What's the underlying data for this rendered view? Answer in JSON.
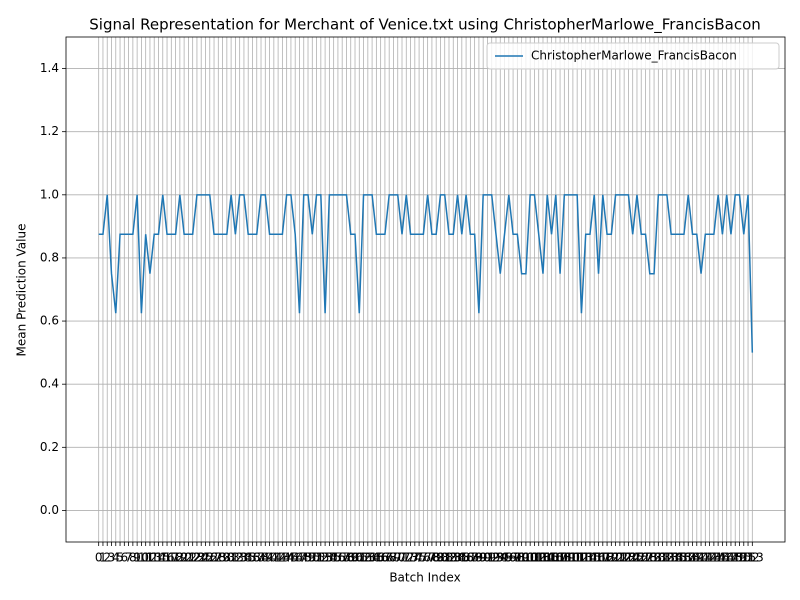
{
  "chart_data": {
    "type": "line",
    "title": "Signal Representation for Merchant of Venice.txt using ChristopherMarlowe_FrancisBacon",
    "xlabel": "Batch Index",
    "ylabel": "Mean Prediction Value",
    "x": [
      0,
      1,
      2,
      3,
      4,
      5,
      6,
      7,
      8,
      9,
      10,
      11,
      12,
      13,
      14,
      15,
      16,
      17,
      18,
      19,
      20,
      21,
      22,
      23,
      24,
      25,
      26,
      27,
      28,
      29,
      30,
      31,
      32,
      33,
      34,
      35,
      36,
      37,
      38,
      39,
      40,
      41,
      42,
      43,
      44,
      45,
      46,
      47,
      48,
      49,
      50,
      51,
      52,
      53,
      54,
      55,
      56,
      57,
      58,
      59,
      60,
      61,
      62,
      63,
      64,
      65,
      66,
      67,
      68,
      69,
      70,
      71,
      72,
      73,
      74,
      75,
      76,
      77,
      78,
      79,
      80,
      81,
      82,
      83,
      84,
      85,
      86,
      87,
      88,
      89,
      90,
      91,
      92,
      93,
      94,
      95,
      96,
      97,
      98,
      99,
      100,
      101,
      102,
      103,
      104,
      105,
      106,
      107,
      108,
      109,
      110,
      111,
      112,
      113,
      114,
      115,
      116,
      117,
      118,
      119,
      120,
      121,
      122,
      123,
      124,
      125,
      126,
      127,
      128,
      129,
      130,
      131,
      132,
      133,
      134,
      135,
      136,
      137,
      138,
      139,
      140,
      141,
      142,
      143,
      144,
      145,
      146,
      147,
      148,
      149,
      150,
      151,
      152,
      153
    ],
    "series": [
      {
        "name": "ChristopherMarlowe_FrancisBacon",
        "color": "#1f77b4",
        "values": [
          0.875,
          0.875,
          1,
          0.75,
          0.625,
          0.875,
          0.875,
          0.875,
          0.875,
          1,
          0.625,
          0.875,
          0.75,
          0.875,
          0.875,
          1,
          0.875,
          0.875,
          0.875,
          1,
          0.875,
          0.875,
          0.875,
          1,
          1,
          1,
          1,
          0.875,
          0.875,
          0.875,
          0.875,
          1,
          0.875,
          1,
          1,
          0.875,
          0.875,
          0.875,
          1,
          1,
          0.875,
          0.875,
          0.875,
          0.875,
          1,
          1,
          0.875,
          0.625,
          1,
          1,
          0.875,
          1,
          1,
          0.625,
          1,
          1,
          1,
          1,
          1,
          0.875,
          0.875,
          0.625,
          1,
          1,
          1,
          0.875,
          0.875,
          0.875,
          1,
          1,
          1,
          0.875,
          1,
          0.875,
          0.875,
          0.875,
          0.875,
          1,
          0.875,
          0.875,
          1,
          1,
          0.875,
          0.875,
          1,
          0.875,
          1,
          0.875,
          0.875,
          0.625,
          1,
          1,
          1,
          0.875,
          0.75,
          0.875,
          1,
          0.875,
          0.875,
          0.75,
          0.75,
          1,
          1,
          0.875,
          0.75,
          1,
          0.875,
          1,
          0.75,
          1,
          1,
          1,
          1,
          0.625,
          0.875,
          0.875,
          1,
          0.75,
          1,
          0.875,
          0.875,
          1,
          1,
          1,
          1,
          0.875,
          1,
          0.875,
          0.875,
          0.75,
          0.75,
          1,
          1,
          1,
          0.875,
          0.875,
          0.875,
          0.875,
          1,
          0.875,
          0.875,
          0.75,
          0.875,
          0.875,
          0.875,
          1,
          0.875,
          1,
          0.875,
          1,
          1,
          0.875,
          1,
          0.5
        ]
      }
    ],
    "xlim": [
      -7.65,
      160.65
    ],
    "ylim": [
      -0.1,
      1.5
    ],
    "xticks": [
      0,
      1,
      2,
      3,
      4,
      5,
      6,
      7,
      8,
      9,
      10,
      11,
      12,
      13,
      14,
      15,
      16,
      17,
      18,
      19,
      20,
      21,
      22,
      23,
      24,
      25,
      26,
      27,
      28,
      29,
      30,
      31,
      32,
      33,
      34,
      35,
      36,
      37,
      38,
      39,
      40,
      41,
      42,
      43,
      44,
      45,
      46,
      47,
      48,
      49,
      50,
      51,
      52,
      53,
      54,
      55,
      56,
      57,
      58,
      59,
      60,
      61,
      62,
      63,
      64,
      65,
      66,
      67,
      68,
      69,
      70,
      71,
      72,
      73,
      74,
      75,
      76,
      77,
      78,
      79,
      80,
      81,
      82,
      83,
      84,
      85,
      86,
      87,
      88,
      89,
      90,
      91,
      92,
      93,
      94,
      95,
      96,
      97,
      98,
      99,
      100,
      101,
      102,
      103,
      104,
      105,
      106,
      107,
      108,
      109,
      110,
      111,
      112,
      113,
      114,
      115,
      116,
      117,
      118,
      119,
      120,
      121,
      122,
      123,
      124,
      125,
      126,
      127,
      128,
      129,
      130,
      131,
      132,
      133,
      134,
      135,
      136,
      137,
      138,
      139,
      140,
      141,
      142,
      143,
      144,
      145,
      146,
      147,
      148,
      149,
      150,
      151,
      152,
      153
    ],
    "yticks": [
      {
        "value": 0,
        "label": "0.0"
      },
      0.2,
      0.4,
      0.6,
      0.8,
      {
        "value": 1,
        "label": "1.0"
      },
      1.2,
      1.4
    ],
    "grid": true,
    "legend": "upper right"
  }
}
